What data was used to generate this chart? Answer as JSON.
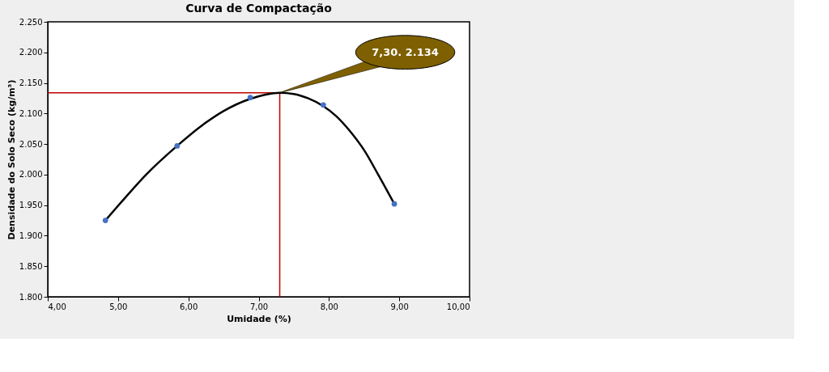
{
  "chart_data": {
    "type": "scatter",
    "title": "Curva de Compactação",
    "xlabel": "Umidade (%)",
    "ylabel": "Densidade do Solo Seco (kg/m³)",
    "series": [
      {
        "color": "#4472c4",
        "marker": "circle",
        "x": [
          4.82,
          5.84,
          6.88,
          7.92,
          8.93
        ],
        "values": [
          1925,
          2047,
          2126,
          2114,
          1952
        ]
      },
      {
        "type": "line",
        "color": "#000000",
        "marker": "none",
        "x": [
          4.82,
          5.1,
          5.4,
          5.84,
          6.2,
          6.5,
          6.88,
          7.1,
          7.3,
          7.5,
          7.7,
          7.92,
          8.1,
          8.3,
          8.5,
          8.7,
          8.93
        ],
        "values": [
          1925,
          1962,
          2000,
          2047,
          2081,
          2104,
          2124,
          2131,
          2134,
          2132,
          2125,
          2112,
          2096,
          2071,
          2040,
          2000,
          1952
        ]
      }
    ],
    "xlim": [
      4,
      10
    ],
    "ylim": [
      1800,
      2250
    ],
    "xticks": [
      {
        "value": 4,
        "label": "4,00"
      },
      {
        "value": 5,
        "label": "5,00"
      },
      {
        "value": 6,
        "label": "6,00"
      },
      {
        "value": 7,
        "label": "7,00"
      },
      {
        "value": 8,
        "label": "8,00"
      },
      {
        "value": 9,
        "label": "9,00"
      },
      {
        "value": 10,
        "label": "10,00"
      }
    ],
    "yticks": [
      {
        "value": 1800,
        "label": "1.800"
      },
      {
        "value": 1850,
        "label": "1.850"
      },
      {
        "value": 1900,
        "label": "1.900"
      },
      {
        "value": 1950,
        "label": "1.950"
      },
      {
        "value": 2000,
        "label": "2.000"
      },
      {
        "value": 2050,
        "label": "2.050"
      },
      {
        "value": 2100,
        "label": "2.100"
      },
      {
        "value": 2150,
        "label": "2.150"
      },
      {
        "value": 2200,
        "label": "2.200"
      },
      {
        "value": 2250,
        "label": "2.250"
      }
    ],
    "ref_lines": [
      {
        "axis": "x",
        "value": 7.3,
        "color": "#c00000"
      },
      {
        "axis": "y",
        "value": 2134,
        "color": "#c00000"
      }
    ],
    "annotations": [
      {
        "text": "7,30. 2.134",
        "x": 7.3,
        "y": 2134
      }
    ],
    "grid": false
  }
}
